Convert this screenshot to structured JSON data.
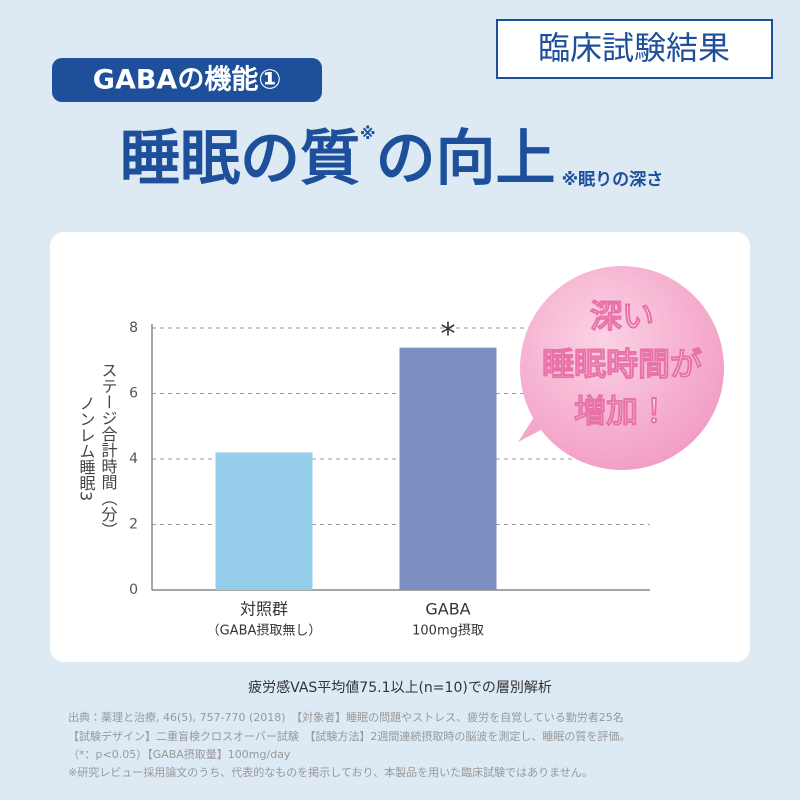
{
  "label_box": "臨床試験結果",
  "badge": "GABAの機能①",
  "title": {
    "main": "睡眠の質",
    "mark": "※",
    "rest": "の向上",
    "note": "※眠りの深さ"
  },
  "chart_data": {
    "type": "bar",
    "categories": [
      "対照群",
      "GABA"
    ],
    "category_sublabels": [
      "（GABA摂取無し）",
      "100mg摂取"
    ],
    "values": [
      4.2,
      7.4
    ],
    "colors": [
      "#95cdea",
      "#7b8ec2"
    ],
    "significance_marks": [
      null,
      "*"
    ],
    "y_label": [
      "ステージ合計時間（分）",
      "ノンレム睡眠3"
    ],
    "ylim": [
      0,
      8
    ],
    "yticks": [
      0,
      2,
      4,
      6,
      8
    ],
    "grid": true
  },
  "callout": [
    "深い",
    "睡眠時間が",
    "増加！"
  ],
  "caption": "疲労感VAS平均値75.1以上(n=10)での層別解析",
  "footnotes": [
    "出典：薬理と治療, 46(5), 757-770 (2018)　【対象者】睡眠の問題やストレス、疲労を自覚している勤労者25名",
    "【試験デザイン】二重盲検クロスオーバー試験　【試験方法】2週間連続摂取時の脳波を測定し、睡眠の質を評価。",
    "（*：p<0.05）【GABA摂取量】100mg/day",
    "※研究レビュー採用論文のうち、代表的なものを掲示しており、本製品を用いた臨床試験ではありません。"
  ]
}
